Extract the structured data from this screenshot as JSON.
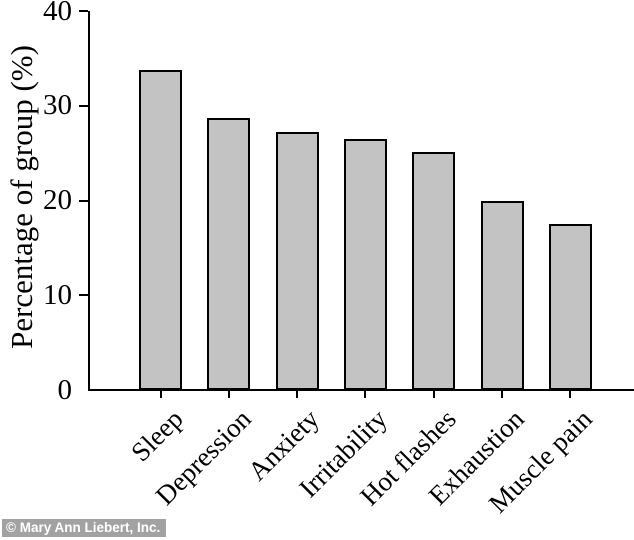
{
  "chart_data": {
    "type": "bar",
    "title": "",
    "xlabel": "",
    "ylabel": "Percentage of group (%)",
    "categories": [
      "Sleep",
      "Depression",
      "Anxiety",
      "Irritability",
      "Hot flashes",
      "Exhaustion",
      "Muscle pain"
    ],
    "values": [
      33.8,
      28.7,
      27.2,
      26.5,
      25.1,
      20.0,
      17.5
    ],
    "ylim": [
      0,
      40
    ],
    "yticks": [
      0,
      10,
      20,
      30,
      40
    ],
    "grid": false,
    "legend_position": "none",
    "bar_fill_color": "#c3c3c3",
    "bar_border_color": "#000000",
    "axis_color": "#000000",
    "text_color": "#000000",
    "background_color": "#ffffff"
  },
  "watermark": {
    "text": "© Mary Ann Liebert, Inc.",
    "background_color": "#a2a2a2",
    "text_color": "#ffffff"
  }
}
